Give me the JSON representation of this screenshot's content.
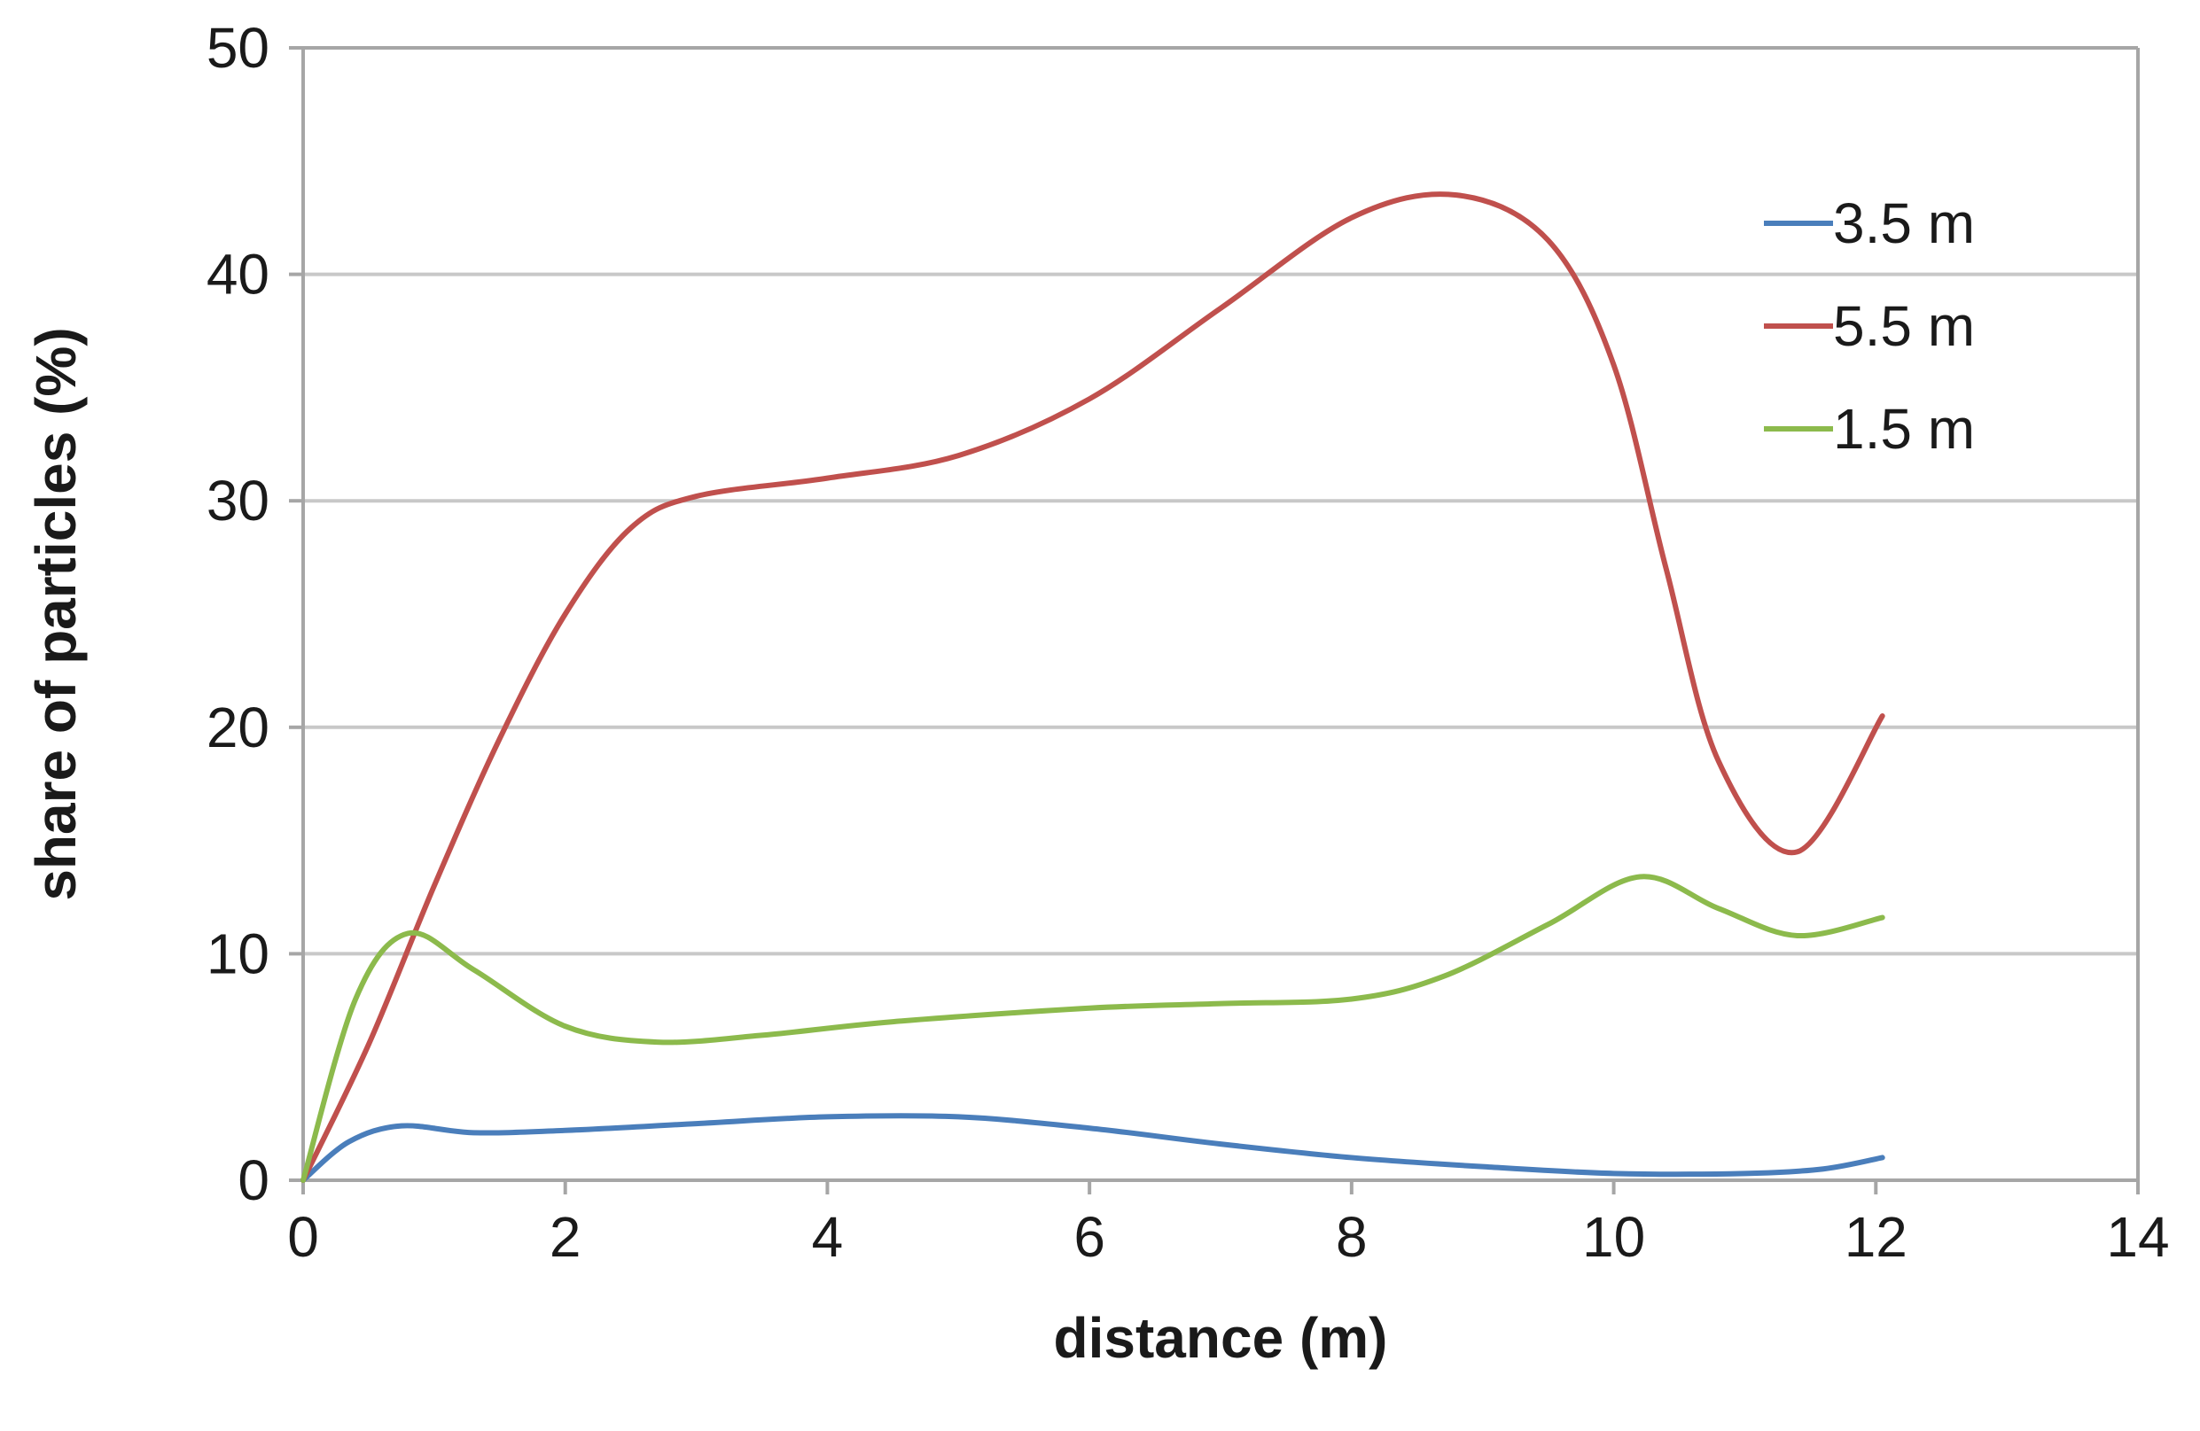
{
  "chart_data": {
    "type": "line",
    "title": "",
    "xlabel": "distance (m)",
    "ylabel": "share of particles (%)",
    "xlim": [
      0,
      14
    ],
    "ylim": [
      0,
      50
    ],
    "x_ticks": [
      0,
      2,
      4,
      6,
      8,
      10,
      12,
      14
    ],
    "y_ticks": [
      0,
      10,
      20,
      30,
      40,
      50
    ],
    "grid": "horizontal",
    "legend": "top-right",
    "smooth": true,
    "series": [
      {
        "name": "3.5 m",
        "color": "#4a7ebb",
        "points": [
          [
            0,
            0
          ],
          [
            0.35,
            1.7
          ],
          [
            0.75,
            2.4
          ],
          [
            1.3,
            2.1
          ],
          [
            2,
            2.2
          ],
          [
            3,
            2.5
          ],
          [
            4,
            2.8
          ],
          [
            5,
            2.8
          ],
          [
            6,
            2.3
          ],
          [
            7,
            1.6
          ],
          [
            8,
            1.0
          ],
          [
            9,
            0.6
          ],
          [
            10,
            0.3
          ],
          [
            11,
            0.3
          ],
          [
            11.6,
            0.5
          ],
          [
            12.05,
            1.0
          ]
        ]
      },
      {
        "name": "5.5 m",
        "color": "#c0504d",
        "points": [
          [
            0,
            0
          ],
          [
            0.5,
            6.0
          ],
          [
            1,
            13.0
          ],
          [
            1.5,
            19.5
          ],
          [
            2,
            25.0
          ],
          [
            2.5,
            28.8
          ],
          [
            3,
            30.2
          ],
          [
            4,
            31.0
          ],
          [
            5,
            32.0
          ],
          [
            6,
            34.5
          ],
          [
            7,
            38.5
          ],
          [
            8,
            42.5
          ],
          [
            8.8,
            43.5
          ],
          [
            9.5,
            41.5
          ],
          [
            10,
            36.0
          ],
          [
            10.4,
            27.0
          ],
          [
            10.8,
            18.5
          ],
          [
            11.4,
            14.5
          ],
          [
            12.05,
            20.5
          ]
        ]
      },
      {
        "name": "1.5 m",
        "color": "#8cba4c",
        "points": [
          [
            0,
            0
          ],
          [
            0.4,
            8.0
          ],
          [
            0.8,
            10.9
          ],
          [
            1.3,
            9.3
          ],
          [
            2,
            6.8
          ],
          [
            2.7,
            6.1
          ],
          [
            3.5,
            6.4
          ],
          [
            4.5,
            7.0
          ],
          [
            6,
            7.6
          ],
          [
            7,
            7.8
          ],
          [
            8,
            8.0
          ],
          [
            8.7,
            9.0
          ],
          [
            9.5,
            11.3
          ],
          [
            10.2,
            13.4
          ],
          [
            10.8,
            12.0
          ],
          [
            11.4,
            10.8
          ],
          [
            12.05,
            11.6
          ]
        ]
      }
    ]
  }
}
